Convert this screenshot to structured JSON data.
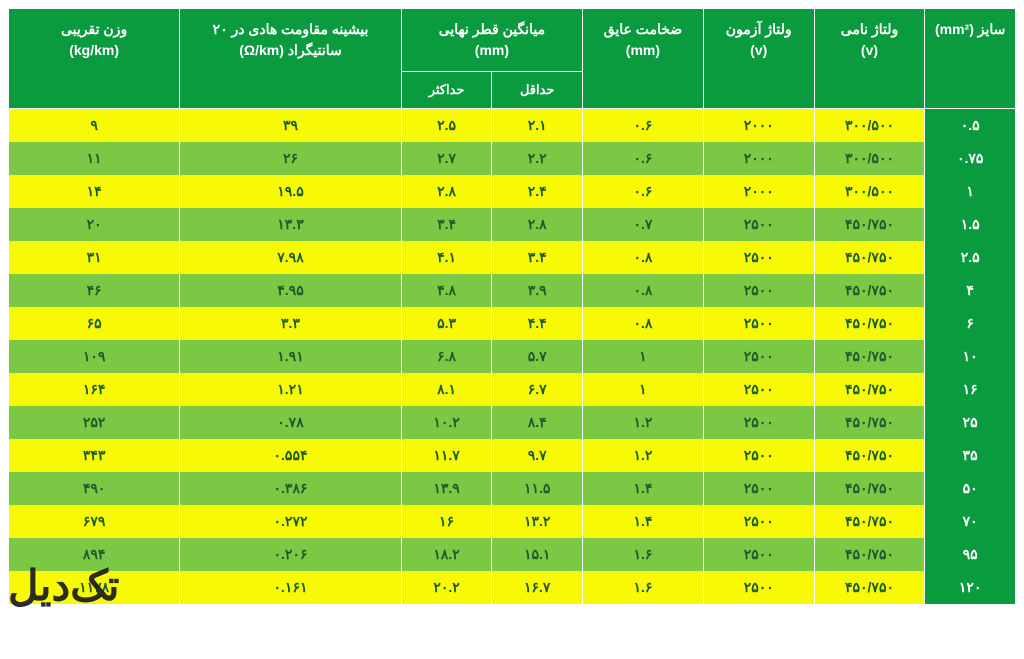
{
  "table": {
    "columns": {
      "size": {
        "label": "سایز (mm²)"
      },
      "nominal_v": {
        "label": "ولتاژ نامی\n(v)"
      },
      "test_v": {
        "label": "ولتاژ آزمون\n(v)"
      },
      "insulation": {
        "label": "ضخامت عایق\n(mm)"
      },
      "diameter": {
        "label": "میانگین قطر نهایی\n(mm)",
        "sub_min": "حداقل",
        "sub_max": "حداکثر"
      },
      "resistance": {
        "label": "بیشینه مقاومت هادی در ۲۰\nسانتیگراد (Ω/km)"
      },
      "weight": {
        "label": "وزن تقریبی\n(kg/km)"
      }
    },
    "rows": [
      {
        "size": "۰.۵",
        "nominal_v": "۳۰۰/۵۰۰",
        "test_v": "۲۰۰۰",
        "insulation": "۰.۶",
        "d_min": "۲.۱",
        "d_max": "۲.۵",
        "resistance": "۳۹",
        "weight": "۹"
      },
      {
        "size": "۰.۷۵",
        "nominal_v": "۳۰۰/۵۰۰",
        "test_v": "۲۰۰۰",
        "insulation": "۰.۶",
        "d_min": "۲.۲",
        "d_max": "۲.۷",
        "resistance": "۲۶",
        "weight": "۱۱"
      },
      {
        "size": "۱",
        "nominal_v": "۳۰۰/۵۰۰",
        "test_v": "۲۰۰۰",
        "insulation": "۰.۶",
        "d_min": "۲.۴",
        "d_max": "۲.۸",
        "resistance": "۱۹.۵",
        "weight": "۱۴"
      },
      {
        "size": "۱.۵",
        "nominal_v": "۴۵۰/۷۵۰",
        "test_v": "۲۵۰۰",
        "insulation": "۰.۷",
        "d_min": "۲.۸",
        "d_max": "۳.۴",
        "resistance": "۱۳.۳",
        "weight": "۲۰"
      },
      {
        "size": "۲.۵",
        "nominal_v": "۴۵۰/۷۵۰",
        "test_v": "۲۵۰۰",
        "insulation": "۰.۸",
        "d_min": "۳.۴",
        "d_max": "۴.۱",
        "resistance": "۷.۹۸",
        "weight": "۳۱"
      },
      {
        "size": "۴",
        "nominal_v": "۴۵۰/۷۵۰",
        "test_v": "۲۵۰۰",
        "insulation": "۰.۸",
        "d_min": "۳.۹",
        "d_max": "۴.۸",
        "resistance": "۴.۹۵",
        "weight": "۴۶"
      },
      {
        "size": "۶",
        "nominal_v": "۴۵۰/۷۵۰",
        "test_v": "۲۵۰۰",
        "insulation": "۰.۸",
        "d_min": "۴.۴",
        "d_max": "۵.۳",
        "resistance": "۳.۳",
        "weight": "۶۵"
      },
      {
        "size": "۱۰",
        "nominal_v": "۴۵۰/۷۵۰",
        "test_v": "۲۵۰۰",
        "insulation": "۱",
        "d_min": "۵.۷",
        "d_max": "۶.۸",
        "resistance": "۱.۹۱",
        "weight": "۱۰۹"
      },
      {
        "size": "۱۶",
        "nominal_v": "۴۵۰/۷۵۰",
        "test_v": "۲۵۰۰",
        "insulation": "۱",
        "d_min": "۶.۷",
        "d_max": "۸.۱",
        "resistance": "۱.۲۱",
        "weight": "۱۶۴"
      },
      {
        "size": "۲۵",
        "nominal_v": "۴۵۰/۷۵۰",
        "test_v": "۲۵۰۰",
        "insulation": "۱.۲",
        "d_min": "۸.۴",
        "d_max": "۱۰.۲",
        "resistance": "۰.۷۸",
        "weight": "۲۵۲"
      },
      {
        "size": "۳۵",
        "nominal_v": "۴۵۰/۷۵۰",
        "test_v": "۲۵۰۰",
        "insulation": "۱.۲",
        "d_min": "۹.۷",
        "d_max": "۱۱.۷",
        "resistance": "۰.۵۵۴",
        "weight": "۳۴۳"
      },
      {
        "size": "۵۰",
        "nominal_v": "۴۵۰/۷۵۰",
        "test_v": "۲۵۰۰",
        "insulation": "۱.۴",
        "d_min": "۱۱.۵",
        "d_max": "۱۳.۹",
        "resistance": "۰.۳۸۶",
        "weight": "۴۹۰"
      },
      {
        "size": "۷۰",
        "nominal_v": "۴۵۰/۷۵۰",
        "test_v": "۲۵۰۰",
        "insulation": "۱.۴",
        "d_min": "۱۳.۲",
        "d_max": "۱۶",
        "resistance": "۰.۲۷۲",
        "weight": "۶۷۹"
      },
      {
        "size": "۹۵",
        "nominal_v": "۴۵۰/۷۵۰",
        "test_v": "۲۵۰۰",
        "insulation": "۱.۶",
        "d_min": "۱۵.۱",
        "d_max": "۱۸.۲",
        "resistance": "۰.۲۰۶",
        "weight": "۸۹۴"
      },
      {
        "size": "۱۲۰",
        "nominal_v": "۴۵۰/۷۵۰",
        "test_v": "۲۵۰۰",
        "insulation": "۱.۶",
        "d_min": "۱۶.۷",
        "d_max": "۲۰.۲",
        "resistance": "۰.۱۶۱",
        "weight": "۱۱۲۸"
      }
    ],
    "row_colors": {
      "odd": "#f7f905",
      "even": "#7ac843"
    },
    "header_bg": "#0a9b3f",
    "header_fg": "#ffffff",
    "size_col_bg": "#0a9b3f",
    "size_col_fg": "#ffffff",
    "cell_fg": "#1a5c2e",
    "border_color": "#ffffff",
    "font_family": "Tahoma",
    "cell_fontsize": 14,
    "header_fontsize": 14
  },
  "watermark": {
    "text": "تک‌دیل"
  }
}
